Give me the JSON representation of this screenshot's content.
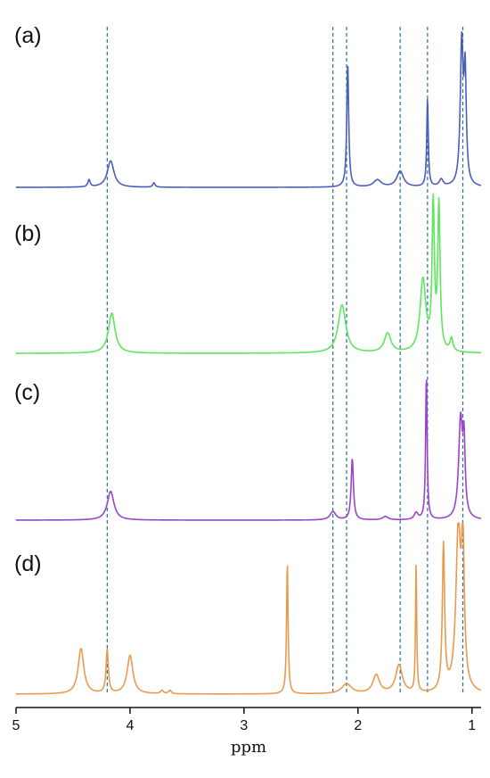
{
  "chart_data": {
    "type": "line",
    "title": "",
    "xlabel": "ppm",
    "ylabel": "",
    "xlim": [
      5,
      0.92
    ],
    "x_reversed": true,
    "xticks": [
      {
        "value": 5,
        "label": "5"
      },
      {
        "value": 4,
        "label": "4"
      },
      {
        "value": 3,
        "label": "3"
      },
      {
        "value": 2,
        "label": "2"
      },
      {
        "value": 1,
        "label": "1"
      }
    ],
    "reference_lines_ppm": [
      4.2,
      2.22,
      2.1,
      1.63,
      1.39,
      1.08
    ],
    "grid": false,
    "legend": "none",
    "series": [
      {
        "label": "(a)",
        "color": "#4a5fb8",
        "peaks": [
          {
            "ppm": 4.36,
            "height": 0.04,
            "width": 0.012
          },
          {
            "ppm": 4.17,
            "height": 0.15,
            "width": 0.035
          },
          {
            "ppm": 3.79,
            "height": 0.025,
            "width": 0.012
          },
          {
            "ppm": 2.09,
            "height": 0.7,
            "width": 0.01
          },
          {
            "ppm": 1.83,
            "height": 0.04,
            "width": 0.04
          },
          {
            "ppm": 1.63,
            "height": 0.09,
            "width": 0.035
          },
          {
            "ppm": 1.39,
            "height": 0.5,
            "width": 0.008
          },
          {
            "ppm": 1.27,
            "height": 0.04,
            "width": 0.02
          },
          {
            "ppm": 1.09,
            "height": 0.8,
            "width": 0.015
          },
          {
            "ppm": 1.06,
            "height": 0.6,
            "width": 0.012
          }
        ]
      },
      {
        "label": "(b)",
        "color": "#5ee65e",
        "peaks": [
          {
            "ppm": 4.16,
            "height": 0.25,
            "width": 0.035
          },
          {
            "ppm": 2.14,
            "height": 0.3,
            "width": 0.04
          },
          {
            "ppm": 1.74,
            "height": 0.12,
            "width": 0.035
          },
          {
            "ppm": 1.43,
            "height": 0.45,
            "width": 0.03
          },
          {
            "ppm": 1.34,
            "height": 0.9,
            "width": 0.012
          },
          {
            "ppm": 1.29,
            "height": 0.9,
            "width": 0.012
          },
          {
            "ppm": 1.18,
            "height": 0.08,
            "width": 0.015
          }
        ]
      },
      {
        "label": "(c)",
        "color": "#9a44cc",
        "peaks": [
          {
            "ppm": 4.17,
            "height": 0.17,
            "width": 0.035
          },
          {
            "ppm": 2.22,
            "height": 0.05,
            "width": 0.03
          },
          {
            "ppm": 2.05,
            "height": 0.36,
            "width": 0.012
          },
          {
            "ppm": 1.76,
            "height": 0.02,
            "width": 0.03
          },
          {
            "ppm": 1.49,
            "height": 0.04,
            "width": 0.02
          },
          {
            "ppm": 1.4,
            "height": 0.85,
            "width": 0.008
          },
          {
            "ppm": 1.1,
            "height": 0.58,
            "width": 0.02
          },
          {
            "ppm": 1.07,
            "height": 0.4,
            "width": 0.012
          }
        ]
      },
      {
        "label": "(d)",
        "color": "#e89b4f",
        "peaks": [
          {
            "ppm": 4.43,
            "height": 0.27,
            "width": 0.03
          },
          {
            "ppm": 4.2,
            "height": 0.26,
            "width": 0.012
          },
          {
            "ppm": 4.0,
            "height": 0.23,
            "width": 0.03
          },
          {
            "ppm": 3.72,
            "height": 0.02,
            "width": 0.015
          },
          {
            "ppm": 3.65,
            "height": 0.02,
            "width": 0.015
          },
          {
            "ppm": 2.62,
            "height": 0.78,
            "width": 0.008
          },
          {
            "ppm": 2.1,
            "height": 0.06,
            "width": 0.05
          },
          {
            "ppm": 1.84,
            "height": 0.11,
            "width": 0.035
          },
          {
            "ppm": 1.64,
            "height": 0.17,
            "width": 0.035
          },
          {
            "ppm": 1.49,
            "height": 0.78,
            "width": 0.006
          },
          {
            "ppm": 1.25,
            "height": 0.87,
            "width": 0.012
          },
          {
            "ppm": 1.12,
            "height": 0.95,
            "width": 0.025
          },
          {
            "ppm": 1.08,
            "height": 0.8,
            "width": 0.015
          }
        ]
      }
    ]
  }
}
